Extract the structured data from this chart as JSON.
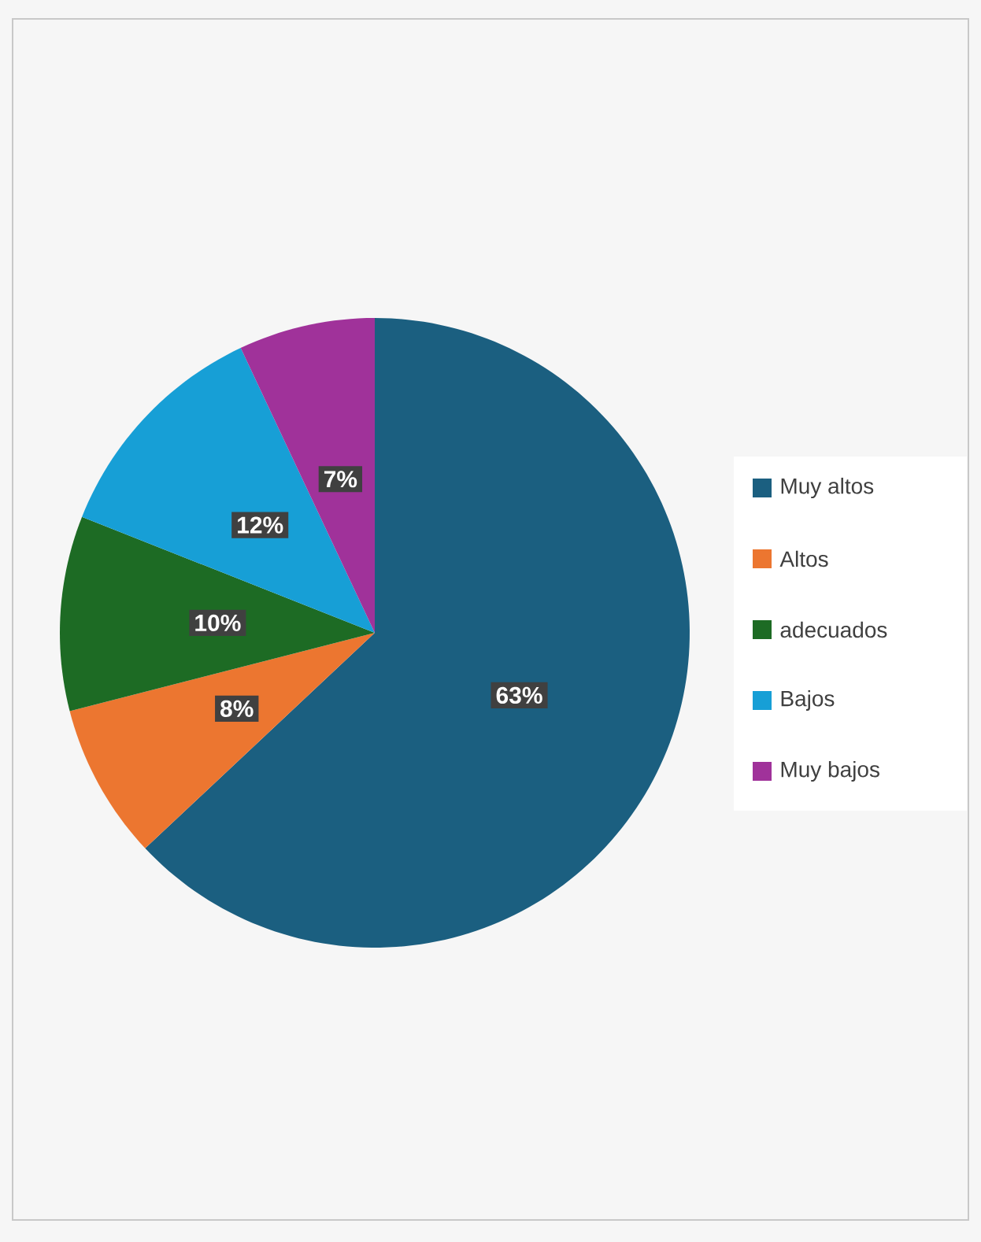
{
  "chart_data": {
    "type": "pie",
    "categories": [
      "Muy altos",
      "Altos",
      "adecuados",
      "Bajos",
      "Muy bajos"
    ],
    "values": [
      63,
      8,
      10,
      12,
      7
    ],
    "colors": [
      "#1b5f80",
      "#ec7630",
      "#1d6b24",
      "#179fd6",
      "#a0329a"
    ],
    "value_labels": [
      "63%",
      "8%",
      "10%",
      "12%",
      "7%"
    ],
    "legend": "right"
  }
}
